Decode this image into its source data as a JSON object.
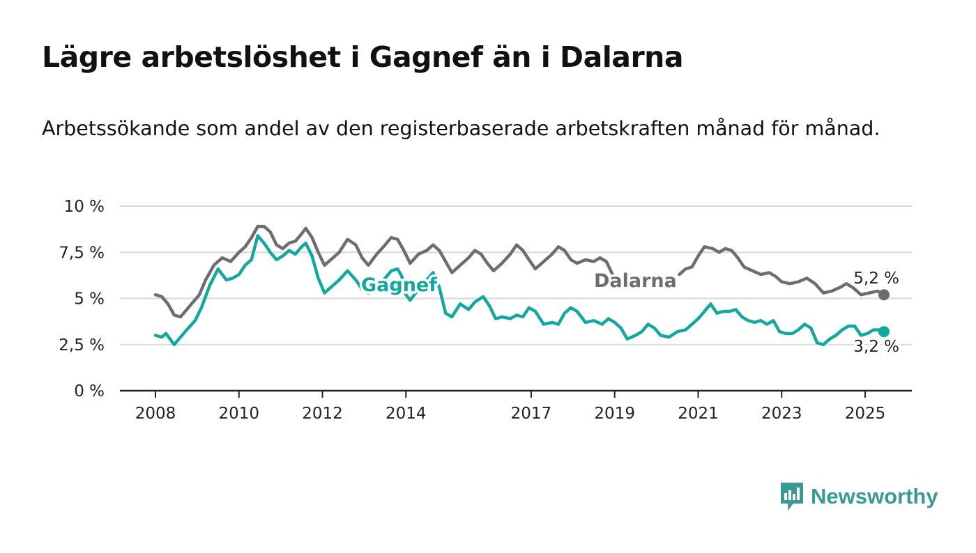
{
  "title": "Lägre arbetslöshet i Gagnef än i Dalarna",
  "subtitle": "Arbetssökande som andel av den registerbaserade arbetskraften månad för månad.",
  "brand": {
    "name": "Newsworthy",
    "color": "#3a9a93"
  },
  "chart_data": {
    "type": "line",
    "title": "Lägre arbetslöshet i Gagnef än i Dalarna",
    "subtitle": "Arbetssökande som andel av den registerbaserade arbetskraften månad för månad.",
    "xlabel": "",
    "ylabel": "",
    "ylim": [
      0,
      10
    ],
    "yticks": [
      0,
      2.5,
      5,
      7.5,
      10
    ],
    "ytick_labels": [
      "0 %",
      "2,5 %",
      "5 %",
      "7,5 %",
      "10 %"
    ],
    "xlim": [
      2007.25,
      2026.1
    ],
    "xticks": [
      2008,
      2010,
      2012,
      2014,
      2017,
      2019,
      2021,
      2023,
      2025
    ],
    "xtick_labels": [
      "2008",
      "2010",
      "2012",
      "2014",
      "2017",
      "2019",
      "2021",
      "2023",
      "2025"
    ],
    "grid": true,
    "legend": "inline labels",
    "series": [
      {
        "name": "Dalarna",
        "color": "#6e6c72",
        "end_label": "5,2 %",
        "points": [
          [
            2008.0,
            5.2
          ],
          [
            2008.15,
            5.1
          ],
          [
            2008.3,
            4.7
          ],
          [
            2008.45,
            4.1
          ],
          [
            2008.6,
            4.0
          ],
          [
            2008.75,
            4.4
          ],
          [
            2008.9,
            4.8
          ],
          [
            2009.05,
            5.2
          ],
          [
            2009.2,
            6.0
          ],
          [
            2009.4,
            6.8
          ],
          [
            2009.6,
            7.2
          ],
          [
            2009.8,
            7.0
          ],
          [
            2010.0,
            7.5
          ],
          [
            2010.15,
            7.8
          ],
          [
            2010.3,
            8.3
          ],
          [
            2010.45,
            8.9
          ],
          [
            2010.6,
            8.9
          ],
          [
            2010.75,
            8.6
          ],
          [
            2010.9,
            7.9
          ],
          [
            2011.05,
            7.7
          ],
          [
            2011.2,
            8.0
          ],
          [
            2011.35,
            8.1
          ],
          [
            2011.5,
            8.5
          ],
          [
            2011.6,
            8.8
          ],
          [
            2011.75,
            8.3
          ],
          [
            2011.9,
            7.5
          ],
          [
            2012.05,
            6.8
          ],
          [
            2012.2,
            7.1
          ],
          [
            2012.4,
            7.5
          ],
          [
            2012.6,
            8.2
          ],
          [
            2012.8,
            7.9
          ],
          [
            2012.95,
            7.2
          ],
          [
            2013.1,
            6.8
          ],
          [
            2013.3,
            7.4
          ],
          [
            2013.5,
            7.9
          ],
          [
            2013.65,
            8.3
          ],
          [
            2013.8,
            8.2
          ],
          [
            2013.95,
            7.6
          ],
          [
            2014.1,
            6.9
          ],
          [
            2014.3,
            7.4
          ],
          [
            2014.5,
            7.6
          ],
          [
            2014.65,
            7.9
          ],
          [
            2014.8,
            7.6
          ],
          [
            2014.95,
            7.0
          ],
          [
            2015.1,
            6.4
          ],
          [
            2015.3,
            6.8
          ],
          [
            2015.5,
            7.2
          ],
          [
            2015.65,
            7.6
          ],
          [
            2015.8,
            7.4
          ],
          [
            2015.95,
            6.9
          ],
          [
            2016.1,
            6.5
          ],
          [
            2016.3,
            6.9
          ],
          [
            2016.5,
            7.4
          ],
          [
            2016.65,
            7.9
          ],
          [
            2016.8,
            7.6
          ],
          [
            2016.95,
            7.1
          ],
          [
            2017.1,
            6.6
          ],
          [
            2017.3,
            7.0
          ],
          [
            2017.5,
            7.4
          ],
          [
            2017.65,
            7.8
          ],
          [
            2017.8,
            7.6
          ],
          [
            2017.95,
            7.1
          ],
          [
            2018.1,
            6.9
          ],
          [
            2018.3,
            7.1
          ],
          [
            2018.5,
            7.0
          ],
          [
            2018.65,
            7.2
          ],
          [
            2018.8,
            7.0
          ],
          [
            2018.95,
            6.3
          ]
        ],
        "points_after_gap": [
          [
            2020.55,
            6.3
          ],
          [
            2020.7,
            6.6
          ],
          [
            2020.85,
            6.7
          ],
          [
            2021.0,
            7.3
          ],
          [
            2021.15,
            7.8
          ],
          [
            2021.35,
            7.7
          ],
          [
            2021.5,
            7.5
          ],
          [
            2021.65,
            7.7
          ],
          [
            2021.8,
            7.6
          ],
          [
            2021.95,
            7.2
          ],
          [
            2022.1,
            6.7
          ],
          [
            2022.3,
            6.5
          ],
          [
            2022.5,
            6.3
          ],
          [
            2022.7,
            6.4
          ],
          [
            2022.85,
            6.2
          ],
          [
            2023.0,
            5.9
          ],
          [
            2023.2,
            5.8
          ],
          [
            2023.4,
            5.9
          ],
          [
            2023.6,
            6.1
          ],
          [
            2023.8,
            5.8
          ],
          [
            2024.0,
            5.3
          ],
          [
            2024.2,
            5.4
          ],
          [
            2024.4,
            5.6
          ],
          [
            2024.55,
            5.8
          ],
          [
            2024.7,
            5.6
          ],
          [
            2024.9,
            5.2
          ],
          [
            2025.1,
            5.3
          ],
          [
            2025.3,
            5.4
          ],
          [
            2025.45,
            5.2
          ]
        ]
      },
      {
        "name": "Gagnef",
        "color": "#13a89e",
        "end_label": "3,2 %",
        "points": [
          [
            2008.0,
            3.0
          ],
          [
            2008.15,
            2.9
          ],
          [
            2008.25,
            3.1
          ],
          [
            2008.45,
            2.5
          ],
          [
            2008.6,
            2.9
          ],
          [
            2008.75,
            3.3
          ],
          [
            2008.95,
            3.8
          ],
          [
            2009.1,
            4.5
          ],
          [
            2009.3,
            5.7
          ],
          [
            2009.5,
            6.6
          ],
          [
            2009.7,
            6.0
          ],
          [
            2009.85,
            6.1
          ],
          [
            2010.0,
            6.3
          ],
          [
            2010.15,
            6.8
          ],
          [
            2010.3,
            7.1
          ],
          [
            2010.45,
            8.4
          ],
          [
            2010.6,
            8.0
          ],
          [
            2010.75,
            7.5
          ],
          [
            2010.9,
            7.1
          ],
          [
            2011.05,
            7.3
          ],
          [
            2011.2,
            7.6
          ],
          [
            2011.35,
            7.4
          ],
          [
            2011.5,
            7.8
          ],
          [
            2011.6,
            8.0
          ],
          [
            2011.75,
            7.3
          ],
          [
            2011.9,
            6.1
          ],
          [
            2012.05,
            5.3
          ],
          [
            2012.2,
            5.6
          ],
          [
            2012.4,
            6.0
          ],
          [
            2012.6,
            6.5
          ],
          [
            2012.8,
            6.0
          ],
          [
            2012.95,
            5.5
          ],
          [
            2013.1,
            5.3
          ],
          [
            2013.3,
            5.7
          ],
          [
            2013.5,
            6.1
          ],
          [
            2013.65,
            6.5
          ],
          [
            2013.8,
            6.6
          ],
          [
            2013.9,
            6.2
          ],
          [
            2014.0,
            5.2
          ],
          [
            2014.1,
            4.9
          ],
          [
            2014.3,
            5.5
          ],
          [
            2014.5,
            6.0
          ],
          [
            2014.65,
            6.4
          ],
          [
            2014.8,
            5.6
          ],
          [
            2014.95,
            4.2
          ],
          [
            2015.1,
            4.0
          ],
          [
            2015.3,
            4.7
          ],
          [
            2015.5,
            4.4
          ],
          [
            2015.65,
            4.8
          ],
          [
            2015.85,
            5.1
          ],
          [
            2016.0,
            4.6
          ],
          [
            2016.15,
            3.9
          ],
          [
            2016.3,
            4.0
          ],
          [
            2016.5,
            3.9
          ],
          [
            2016.65,
            4.1
          ],
          [
            2016.8,
            4.0
          ],
          [
            2016.95,
            4.5
          ],
          [
            2017.1,
            4.3
          ],
          [
            2017.3,
            3.6
          ],
          [
            2017.5,
            3.7
          ],
          [
            2017.65,
            3.6
          ],
          [
            2017.8,
            4.2
          ],
          [
            2017.95,
            4.5
          ],
          [
            2018.1,
            4.3
          ],
          [
            2018.3,
            3.7
          ],
          [
            2018.5,
            3.8
          ],
          [
            2018.7,
            3.6
          ],
          [
            2018.85,
            3.9
          ],
          [
            2019.0,
            3.7
          ],
          [
            2019.15,
            3.4
          ],
          [
            2019.3,
            2.8
          ],
          [
            2019.5,
            3.0
          ],
          [
            2019.65,
            3.2
          ],
          [
            2019.8,
            3.6
          ],
          [
            2019.95,
            3.4
          ],
          [
            2020.1,
            3.0
          ],
          [
            2020.3,
            2.9
          ],
          [
            2020.5,
            3.2
          ],
          [
            2020.7,
            3.3
          ],
          [
            2020.85,
            3.6
          ],
          [
            2021.0,
            3.9
          ],
          [
            2021.15,
            4.3
          ],
          [
            2021.3,
            4.7
          ],
          [
            2021.45,
            4.2
          ],
          [
            2021.6,
            4.3
          ],
          [
            2021.75,
            4.3
          ],
          [
            2021.9,
            4.4
          ],
          [
            2022.05,
            4.0
          ],
          [
            2022.2,
            3.8
          ],
          [
            2022.35,
            3.7
          ],
          [
            2022.5,
            3.8
          ],
          [
            2022.65,
            3.6
          ],
          [
            2022.8,
            3.8
          ],
          [
            2022.95,
            3.2
          ],
          [
            2023.1,
            3.1
          ],
          [
            2023.25,
            3.1
          ],
          [
            2023.4,
            3.3
          ],
          [
            2023.55,
            3.6
          ],
          [
            2023.7,
            3.4
          ],
          [
            2023.85,
            2.6
          ],
          [
            2024.0,
            2.5
          ],
          [
            2024.15,
            2.8
          ],
          [
            2024.3,
            3.0
          ],
          [
            2024.45,
            3.3
          ],
          [
            2024.6,
            3.5
          ],
          [
            2024.75,
            3.5
          ],
          [
            2024.9,
            3.0
          ],
          [
            2025.05,
            3.1
          ],
          [
            2025.2,
            3.3
          ],
          [
            2025.35,
            3.3
          ],
          [
            2025.45,
            3.2
          ]
        ]
      }
    ]
  }
}
